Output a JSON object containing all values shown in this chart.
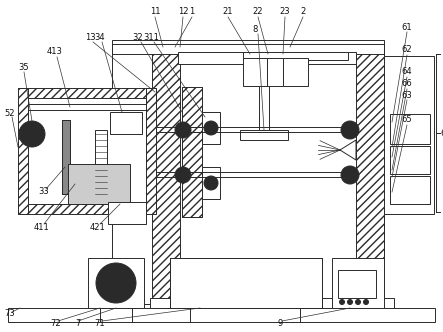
{
  "bg_color": "#ffffff",
  "line_color": "#2a2a2a",
  "figsize": [
    4.43,
    3.32
  ],
  "dpi": 100,
  "lw": 0.7
}
